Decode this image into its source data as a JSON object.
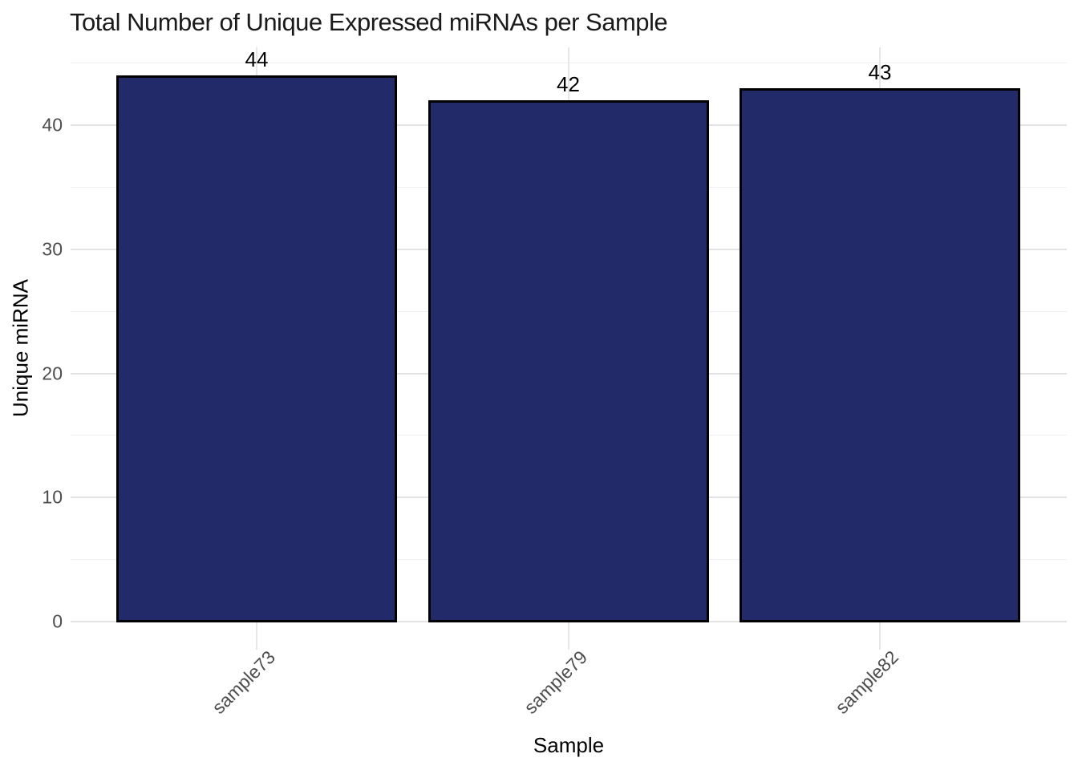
{
  "chart_data": {
    "type": "bar",
    "title": "Total Number of Unique Expressed miRNAs per Sample",
    "xlabel": "Sample",
    "ylabel": "Unique miRNA",
    "categories": [
      "sample73",
      "sample79",
      "sample82"
    ],
    "values": [
      44,
      42,
      43
    ],
    "bar_value_labels": [
      "44",
      "42",
      "43"
    ],
    "y_ticks_major": [
      0,
      10,
      20,
      30,
      40
    ],
    "y_ticks_minor": [
      5,
      15,
      25,
      35,
      45
    ],
    "ylim": [
      -2.2,
      46.2
    ],
    "grid": "on",
    "legend": "none",
    "colors": {
      "bar_fill": "#222a69",
      "bar_border": "#000000",
      "gridline_major": "#e3e3e3",
      "gridline_minor": "#efefef",
      "tick_label": "#4d4d4d",
      "axis_title": "#000000",
      "plot_title": "#1a1a1a",
      "background": "#ffffff"
    }
  }
}
